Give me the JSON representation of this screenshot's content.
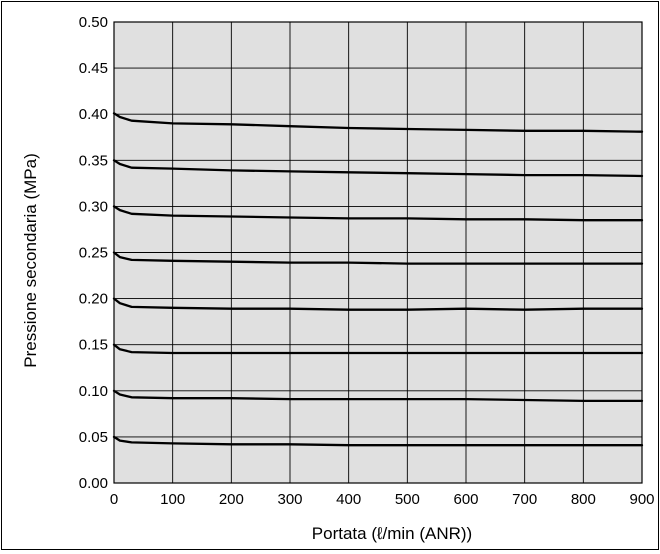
{
  "chart_data": {
    "type": "line",
    "title": "",
    "xlabel": "Portata (ℓ/min (ANR))",
    "ylabel": "Pressione secondaria (MPa)",
    "xlim": [
      0,
      900
    ],
    "ylim": [
      0,
      0.5
    ],
    "x_ticks": [
      0,
      100,
      200,
      300,
      400,
      500,
      600,
      700,
      800,
      900
    ],
    "y_ticks": [
      "0.00",
      "0.05",
      "0.10",
      "0.15",
      "0.20",
      "0.25",
      "0.30",
      "0.35",
      "0.40",
      "0.45",
      "0.50"
    ],
    "grid": true,
    "legend": "none",
    "plot_background": "#e0e0e0",
    "line_color": "#000000",
    "series": [
      {
        "x": [
          0,
          10,
          30,
          100,
          200,
          300,
          400,
          500,
          600,
          700,
          800,
          900
        ],
        "y": [
          0.401,
          0.397,
          0.393,
          0.39,
          0.389,
          0.387,
          0.385,
          0.384,
          0.383,
          0.382,
          0.382,
          0.381
        ]
      },
      {
        "x": [
          0,
          10,
          30,
          100,
          200,
          300,
          400,
          500,
          600,
          700,
          800,
          900
        ],
        "y": [
          0.35,
          0.346,
          0.342,
          0.341,
          0.339,
          0.338,
          0.337,
          0.336,
          0.335,
          0.334,
          0.334,
          0.333
        ]
      },
      {
        "x": [
          0,
          10,
          30,
          100,
          200,
          300,
          400,
          500,
          600,
          700,
          800,
          900
        ],
        "y": [
          0.3,
          0.296,
          0.292,
          0.29,
          0.289,
          0.288,
          0.287,
          0.287,
          0.286,
          0.286,
          0.285,
          0.285
        ]
      },
      {
        "x": [
          0,
          10,
          30,
          100,
          200,
          300,
          400,
          500,
          600,
          700,
          800,
          900
        ],
        "y": [
          0.25,
          0.245,
          0.242,
          0.241,
          0.24,
          0.239,
          0.239,
          0.238,
          0.238,
          0.238,
          0.238,
          0.238
        ]
      },
      {
        "x": [
          0,
          10,
          30,
          100,
          200,
          300,
          400,
          500,
          600,
          700,
          800,
          900
        ],
        "y": [
          0.2,
          0.195,
          0.191,
          0.19,
          0.189,
          0.189,
          0.188,
          0.188,
          0.189,
          0.188,
          0.189,
          0.189
        ]
      },
      {
        "x": [
          0,
          10,
          30,
          100,
          200,
          300,
          400,
          500,
          600,
          700,
          800,
          900
        ],
        "y": [
          0.15,
          0.145,
          0.142,
          0.141,
          0.141,
          0.141,
          0.141,
          0.141,
          0.141,
          0.141,
          0.141,
          0.141
        ]
      },
      {
        "x": [
          0,
          10,
          30,
          100,
          200,
          300,
          400,
          500,
          600,
          700,
          800,
          900
        ],
        "y": [
          0.1,
          0.096,
          0.093,
          0.092,
          0.092,
          0.091,
          0.091,
          0.091,
          0.091,
          0.09,
          0.089,
          0.089
        ]
      },
      {
        "x": [
          0,
          10,
          30,
          100,
          200,
          300,
          400,
          500,
          600,
          700,
          800,
          900
        ],
        "y": [
          0.05,
          0.046,
          0.044,
          0.043,
          0.042,
          0.042,
          0.041,
          0.041,
          0.041,
          0.041,
          0.041,
          0.041
        ]
      }
    ]
  }
}
